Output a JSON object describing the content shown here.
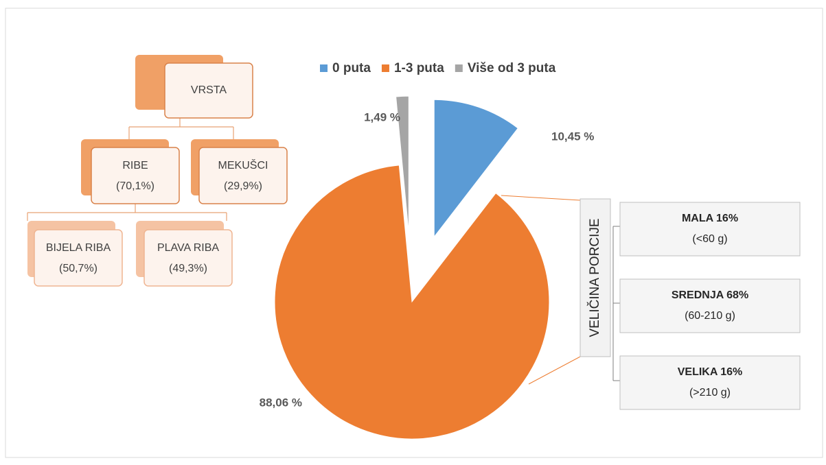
{
  "chart_data": {
    "type": "pie",
    "categories": [
      "0 puta",
      "1-3 puta",
      "Više od 3 puta"
    ],
    "values": [
      10.45,
      88.06,
      1.49
    ],
    "value_labels": [
      "10,45 %",
      "88,06 %",
      "1,49 %"
    ],
    "colors": [
      "#5b9bd5",
      "#ed7d31",
      "#a5a5a5"
    ],
    "exploded": [
      true,
      false,
      true
    ],
    "legend": "top"
  },
  "hierarchy": {
    "nodes": [
      {
        "label": "VRSTA"
      },
      {
        "label": "RIBE",
        "value": "(70,1%)"
      },
      {
        "label": "MEKUŠCI",
        "value": "(29,9%)"
      },
      {
        "label": "BIJELA RIBA",
        "value": "(50,7%)"
      },
      {
        "label": "PLAVA RIBA",
        "value": "(49,3%)"
      }
    ]
  },
  "portion": {
    "title": "VELIČINA PORCIJE",
    "items": [
      {
        "label": "MALA 16%",
        "range": "(<60 g)"
      },
      {
        "label": "SREDNJA  68%",
        "range": "(60-210 g)"
      },
      {
        "label": "VELIKA  16%",
        "range": "(>210 g)"
      }
    ]
  }
}
